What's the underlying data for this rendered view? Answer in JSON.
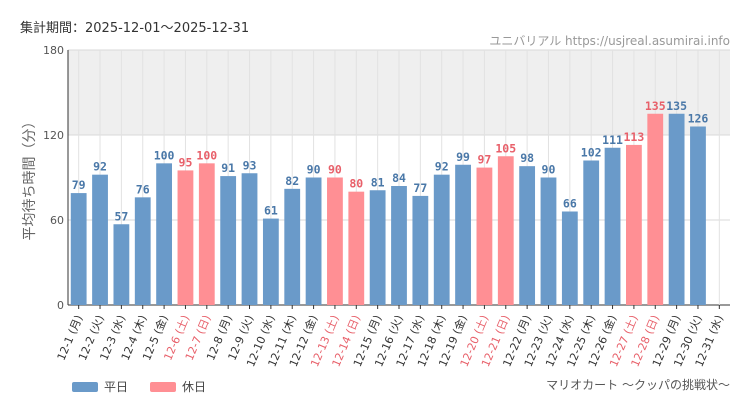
{
  "header": {
    "period_label": "集計期間：2025-12-01～2025-12-31",
    "site_credit": "ユニバリアル  https://usjreal.asumirai.info"
  },
  "footer": {
    "attraction_name": "マリオカート ～クッパの挑戦状～"
  },
  "colors": {
    "weekday": "#6a9ac9",
    "holiday": "#ff8f94",
    "holiday_label": "#e8606a",
    "band": "#efefef"
  },
  "chart_data": {
    "type": "bar",
    "title": "",
    "xlabel": "",
    "ylabel": "平均待ち時間（分）",
    "ylim": [
      0,
      180
    ],
    "yticks": [
      0,
      60,
      120,
      180
    ],
    "highlight_band": [
      120,
      180
    ],
    "legend": [
      {
        "name": "平日",
        "color_key": "weekday"
      },
      {
        "name": "休日",
        "color_key": "holiday"
      }
    ],
    "categories": [
      "12-1 (月)",
      "12-2 (火)",
      "12-3 (水)",
      "12-4 (木)",
      "12-5 (金)",
      "12-6 (土)",
      "12-7 (日)",
      "12-8 (月)",
      "12-9 (火)",
      "12-10 (水)",
      "12-11 (木)",
      "12-12 (金)",
      "12-13 (土)",
      "12-14 (日)",
      "12-15 (月)",
      "12-16 (火)",
      "12-17 (水)",
      "12-18 (木)",
      "12-19 (金)",
      "12-20 (土)",
      "12-21 (日)",
      "12-22 (月)",
      "12-23 (火)",
      "12-24 (水)",
      "12-25 (木)",
      "12-26 (金)",
      "12-27 (土)",
      "12-28 (日)",
      "12-29 (月)",
      "12-30 (火)",
      "12-31 (水)"
    ],
    "values": [
      79,
      92,
      57,
      76,
      100,
      95,
      100,
      91,
      93,
      61,
      82,
      90,
      90,
      80,
      81,
      84,
      77,
      92,
      99,
      97,
      105,
      98,
      90,
      66,
      102,
      111,
      113,
      135,
      135,
      126,
      null
    ],
    "holiday": [
      false,
      false,
      false,
      false,
      false,
      true,
      true,
      false,
      false,
      false,
      false,
      false,
      true,
      true,
      false,
      false,
      false,
      false,
      false,
      true,
      true,
      false,
      false,
      false,
      false,
      false,
      true,
      true,
      false,
      false,
      false
    ]
  }
}
